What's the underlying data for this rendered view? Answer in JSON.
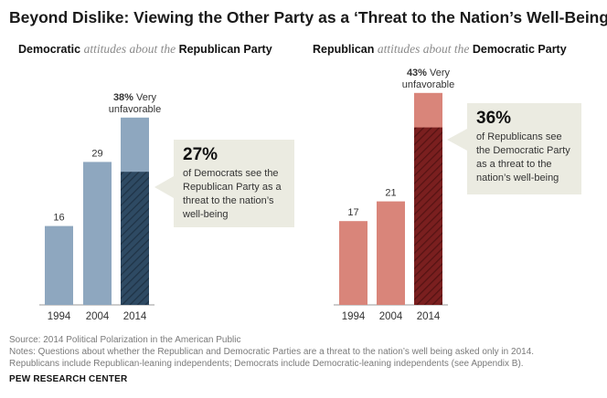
{
  "title": "Beyond Dislike: Viewing the Other Party as a ‘Threat to the Nation’s Well-Being’",
  "panels": [
    {
      "subtitle_party": "Democratic",
      "subtitle_mid": "attitudes about the",
      "subtitle_target": "Republican Party",
      "callout_pct": "27%",
      "callout_text": [
        "of Democrats see the",
        "Republican Party as a",
        "threat to the nation’s",
        "well-being"
      ],
      "top_label_pct": "38%",
      "top_label_rest": " Very",
      "top_label_line2": "unfavorable"
    },
    {
      "subtitle_party": "Republican",
      "subtitle_mid": "attitudes about the",
      "subtitle_target": "Democratic Party",
      "callout_pct": "36%",
      "callout_text": [
        "of Republicans see",
        "the Democratic Party",
        "as a threat to the",
        "nation’s well-being"
      ],
      "top_label_pct": "43%",
      "top_label_rest": " Very",
      "top_label_line2": "unfavorable"
    }
  ],
  "chart_data": [
    {
      "type": "bar",
      "panel": "Democratic attitudes about the Republican Party",
      "categories": [
        "1994",
        "2004",
        "2014"
      ],
      "series": [
        {
          "name": "Very unfavorable",
          "values": [
            16,
            29,
            38
          ]
        },
        {
          "name": "Threat to the nation’s well-being",
          "values": [
            null,
            null,
            27
          ]
        }
      ],
      "data_labels": [
        "16",
        "29",
        ""
      ],
      "colors": {
        "bar": "#8ea7bf",
        "threat": "#2e4a63"
      }
    },
    {
      "type": "bar",
      "panel": "Republican attitudes about the Democratic Party",
      "categories": [
        "1994",
        "2004",
        "2014"
      ],
      "series": [
        {
          "name": "Very unfavorable",
          "values": [
            17,
            21,
            43
          ]
        },
        {
          "name": "Threat to the nation’s well-being",
          "values": [
            null,
            null,
            36
          ]
        }
      ],
      "data_labels": [
        "17",
        "21",
        ""
      ],
      "colors": {
        "bar": "#d9857a",
        "threat": "#7a1f1f"
      }
    }
  ],
  "callout_bg": "#ebebe1",
  "footer": {
    "source": "Source: 2014 Political Polarization in the American Public",
    "notes1": "Notes: Questions about whether the Republican and Democratic Parties are a threat to the nation’s well being asked only in 2014.",
    "notes2": "Republicans include Republican-leaning independents; Democrats include Democratic-leaning independents (see Appendix B).",
    "brand": "PEW RESEARCH CENTER"
  }
}
